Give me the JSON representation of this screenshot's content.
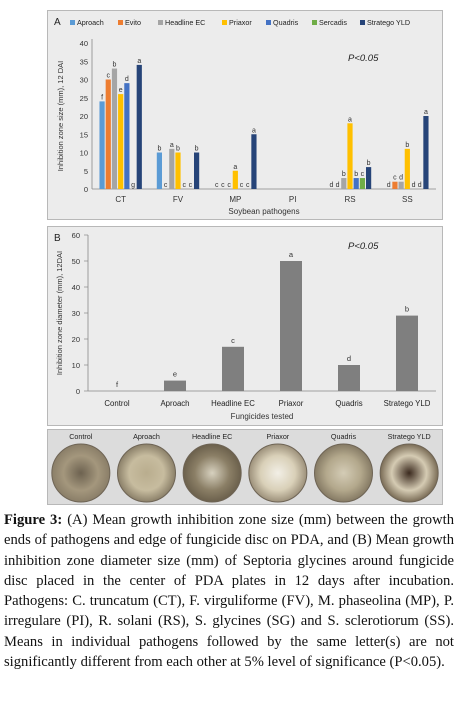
{
  "panel_a": {
    "letter": "A",
    "p_text": "P<0.05",
    "chart_data": {
      "type": "bar",
      "title": "",
      "xlabel": "Soybean pathogens",
      "ylabel": "Inhibition zone size (mm), 12 DAI",
      "ylim": [
        0,
        40
      ],
      "yticks": [
        0,
        5,
        10,
        15,
        20,
        25,
        30,
        35,
        40
      ],
      "categories": [
        "CT",
        "FV",
        "MP",
        "PI",
        "RS",
        "SS"
      ],
      "legend": "top",
      "series": [
        {
          "name": "Aproach",
          "color": "#5b9bd5",
          "values": [
            24,
            10,
            0,
            0,
            0,
            0
          ],
          "letters": [
            "f",
            "b",
            "c",
            "",
            "d",
            "d"
          ]
        },
        {
          "name": "Evito",
          "color": "#ed7d31",
          "values": [
            30,
            0,
            0,
            0,
            0,
            2
          ],
          "letters": [
            "c",
            "c",
            "c",
            "",
            "d",
            "c"
          ]
        },
        {
          "name": "Headline EC",
          "color": "#a5a5a5",
          "values": [
            33,
            11,
            0,
            0,
            3,
            2
          ],
          "letters": [
            "b",
            "a",
            "c",
            "",
            "b",
            "d"
          ]
        },
        {
          "name": "Priaxor",
          "color": "#ffc000",
          "values": [
            26,
            10,
            5,
            0,
            18,
            11
          ],
          "letters": [
            "e",
            "b",
            "a",
            "",
            "a",
            "b"
          ]
        },
        {
          "name": "Quadris",
          "color": "#4472c4",
          "values": [
            29,
            0,
            0,
            0,
            3,
            0
          ],
          "letters": [
            "d",
            "c",
            "c",
            "",
            "b",
            "d"
          ]
        },
        {
          "name": "Sercadis",
          "color": "#70ad47",
          "values": [
            0,
            0,
            0,
            0,
            3,
            0
          ],
          "letters": [
            "g",
            "c",
            "c",
            "",
            "c",
            "d"
          ]
        },
        {
          "name": "Stratego YLD",
          "color": "#264478",
          "values": [
            34,
            10,
            15,
            0,
            6,
            20
          ],
          "letters": [
            "a",
            "b",
            "a",
            "",
            "b",
            "a"
          ]
        }
      ]
    }
  },
  "panel_b": {
    "letter": "B",
    "p_text": "P<0.05",
    "chart_data": {
      "type": "bar",
      "title": "",
      "xlabel": "Fungicides tested",
      "ylabel": "Inhibition zone diameter (mm), 12DAI",
      "ylim": [
        0,
        60
      ],
      "yticks": [
        0,
        10,
        20,
        30,
        40,
        50,
        60
      ],
      "categories": [
        "Control",
        "Aproach",
        "Headline EC",
        "Priaxor",
        "Quadris",
        "Stratego YLD"
      ],
      "values": [
        0,
        4,
        17,
        50,
        10,
        29
      ],
      "letters": [
        "f",
        "e",
        "c",
        "a",
        "d",
        "b"
      ],
      "bar_color": "#7f7f7f"
    }
  },
  "photos": {
    "labels": [
      "Control",
      "Aproach",
      "Headline EC",
      "Priaxor",
      "Quadris",
      "Stratego YLD"
    ]
  },
  "caption": {
    "lead": "Figure 3:",
    "text": " (A) Mean growth inhibition zone size (mm) between the growth ends of pathogens and edge of fungicide disc on PDA, and (B) Mean growth inhibition zone diameter size (mm) of Septoria glycines around fungicide disc placed in the center of PDA plates in 12 days after incubation. Pathogens: C. truncatum (CT), F. virguliforme (FV), M. phaseolina (MP), P. irregulare (PI), R. solani (RS), S. glycines (SG) and S. sclerotiorum (SS). Means in individual pathogens followed by the same letter(s) are not significantly different from each other at 5% level of significance (P<0.05)."
  }
}
